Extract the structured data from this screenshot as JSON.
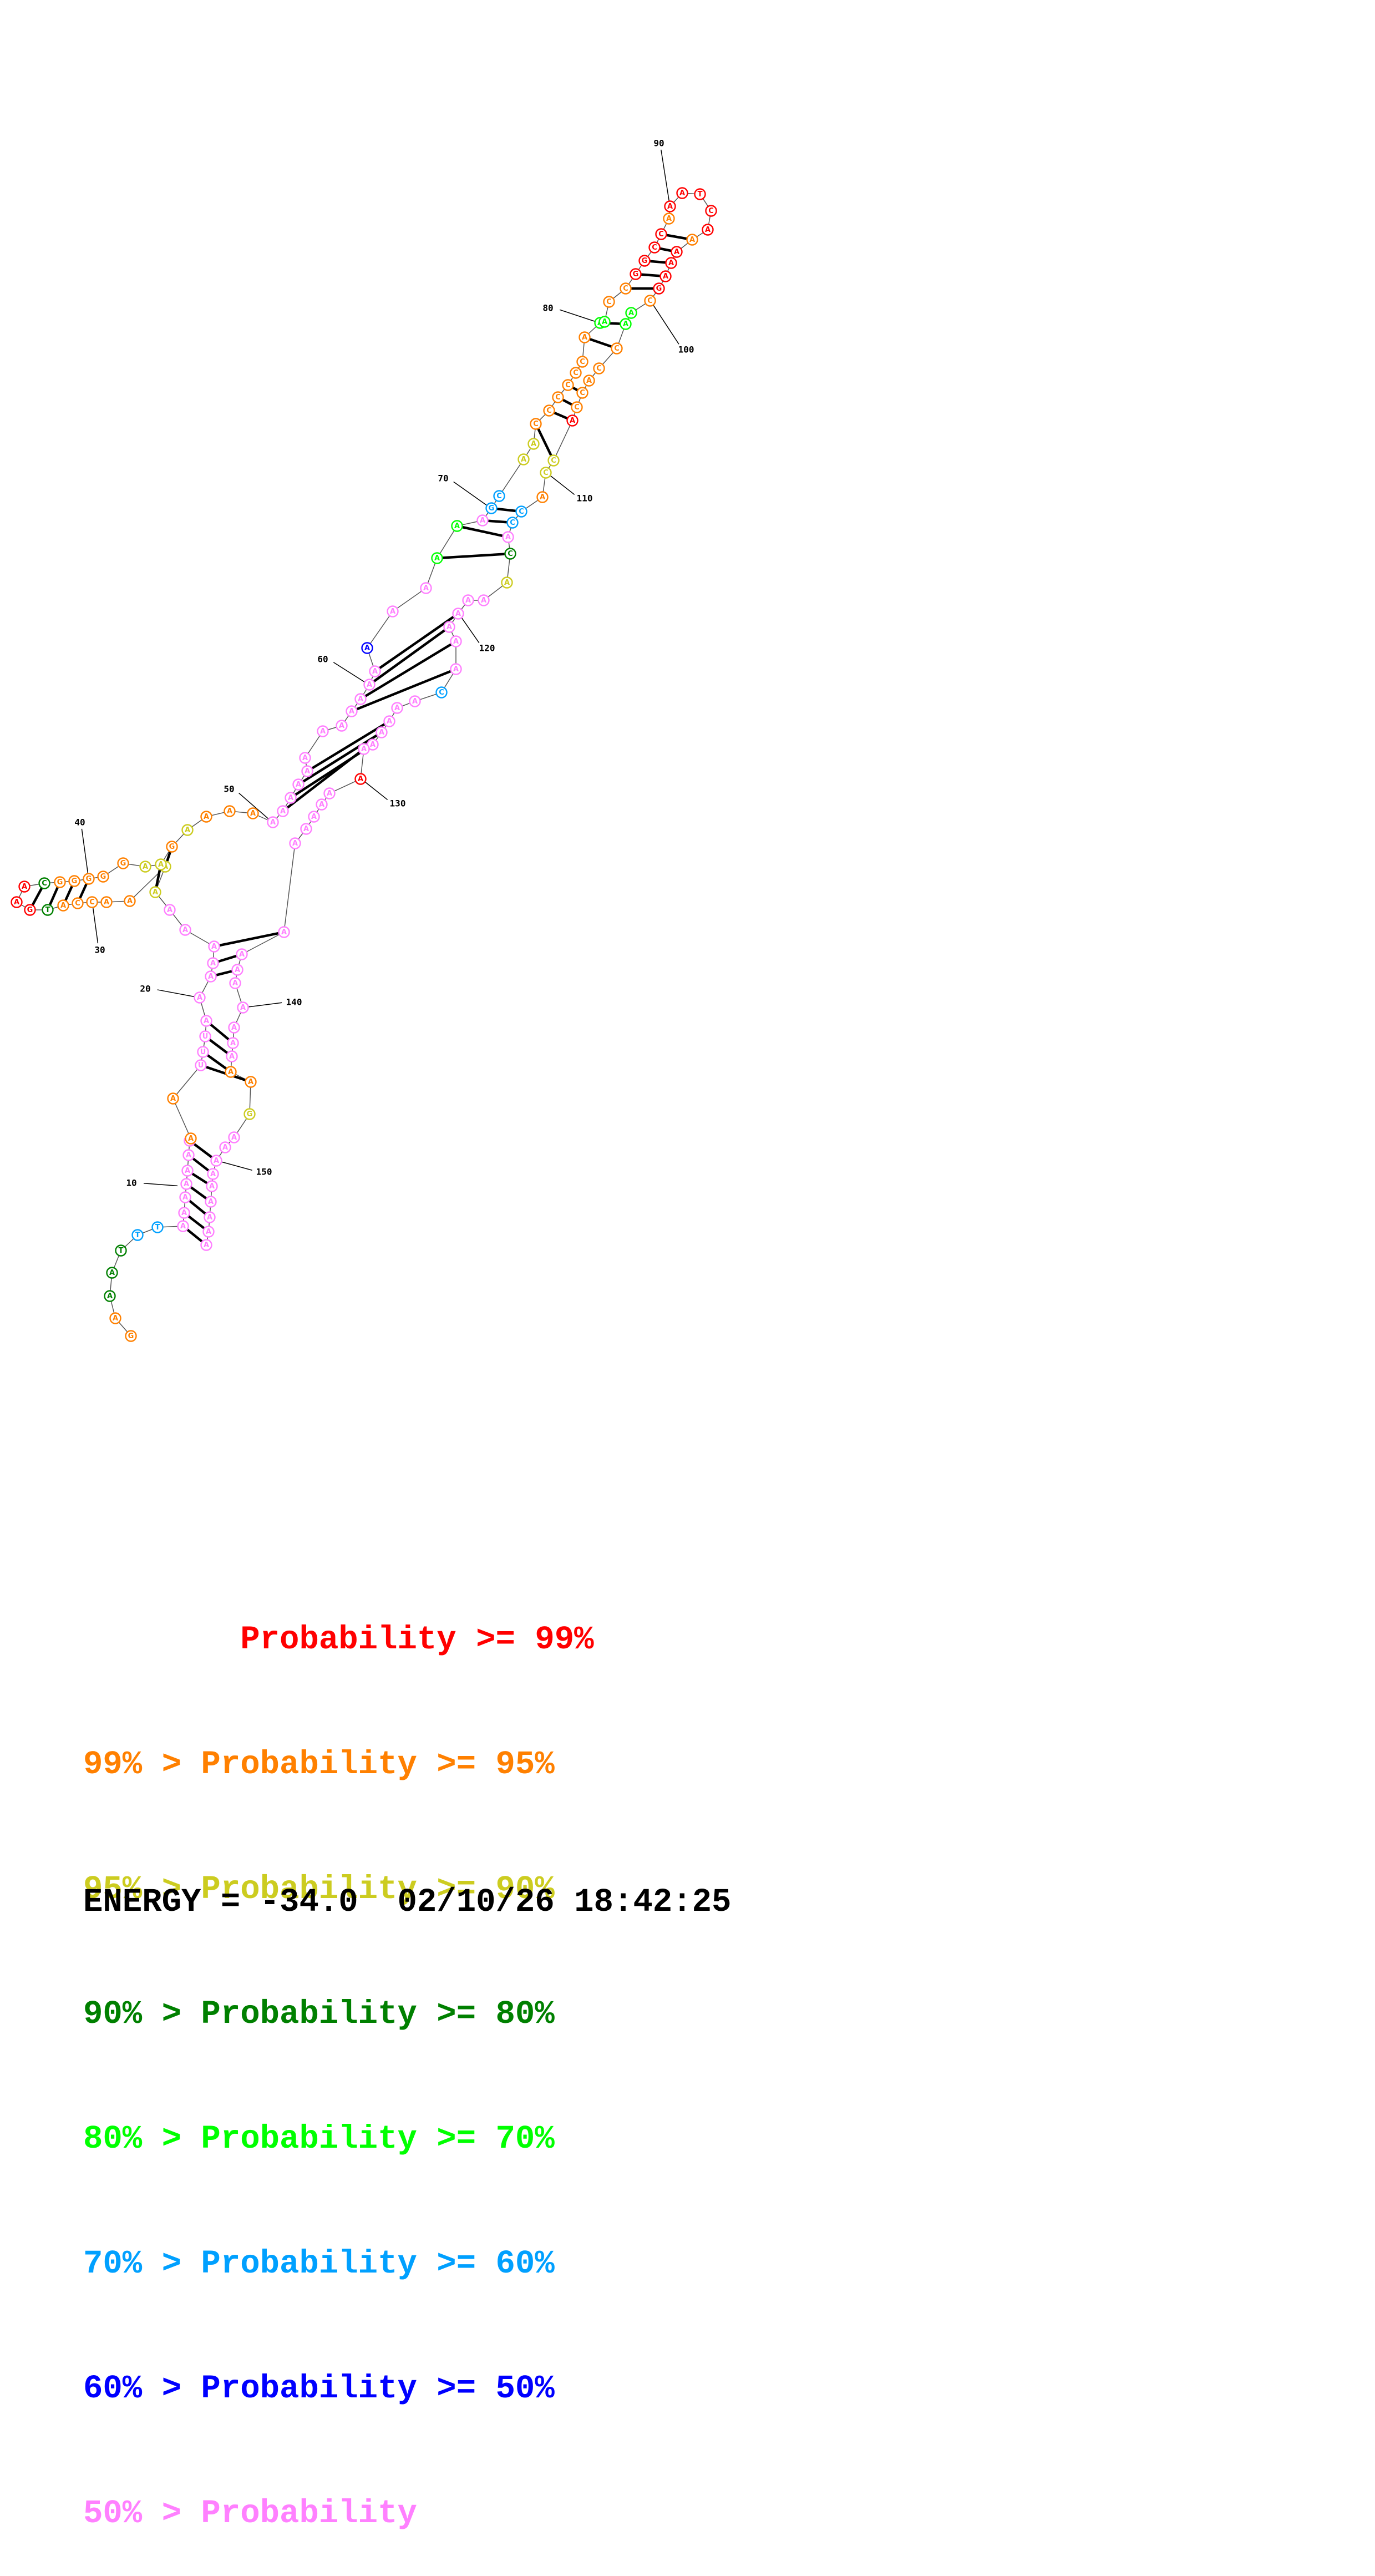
{
  "colors": {
    "p99": "#ff0000",
    "p95": "#ff8000",
    "p90": "#cccc20",
    "p80": "#008000",
    "p70": "#00ff00",
    "p60": "#00a0ff",
    "p50": "#0000ff",
    "plow": "#ff80ff"
  },
  "legend": [
    {
      "text": "        Probability >= 99%",
      "color_key": "p99"
    },
    {
      "text": "99% > Probability >= 95%",
      "color_key": "p95"
    },
    {
      "text": "95% > Probability >= 90%",
      "color_key": "p90"
    },
    {
      "text": "90% > Probability >= 80%",
      "color_key": "p80"
    },
    {
      "text": "80% > Probability >= 70%",
      "color_key": "p70"
    },
    {
      "text": "70% > Probability >= 60%",
      "color_key": "p60"
    },
    {
      "text": "60% > Probability >= 50%",
      "color_key": "p50"
    },
    {
      "text": "50% > Probability",
      "color_key": "plow"
    }
  ],
  "energy_line": "ENERGY = -34.0  02/10/26 18:42:25",
  "position_labels": [
    "10",
    "20",
    "30",
    "40",
    "50",
    "60",
    "70",
    "80",
    "90",
    "100",
    "110",
    "120",
    "130",
    "140",
    "150"
  ]
}
